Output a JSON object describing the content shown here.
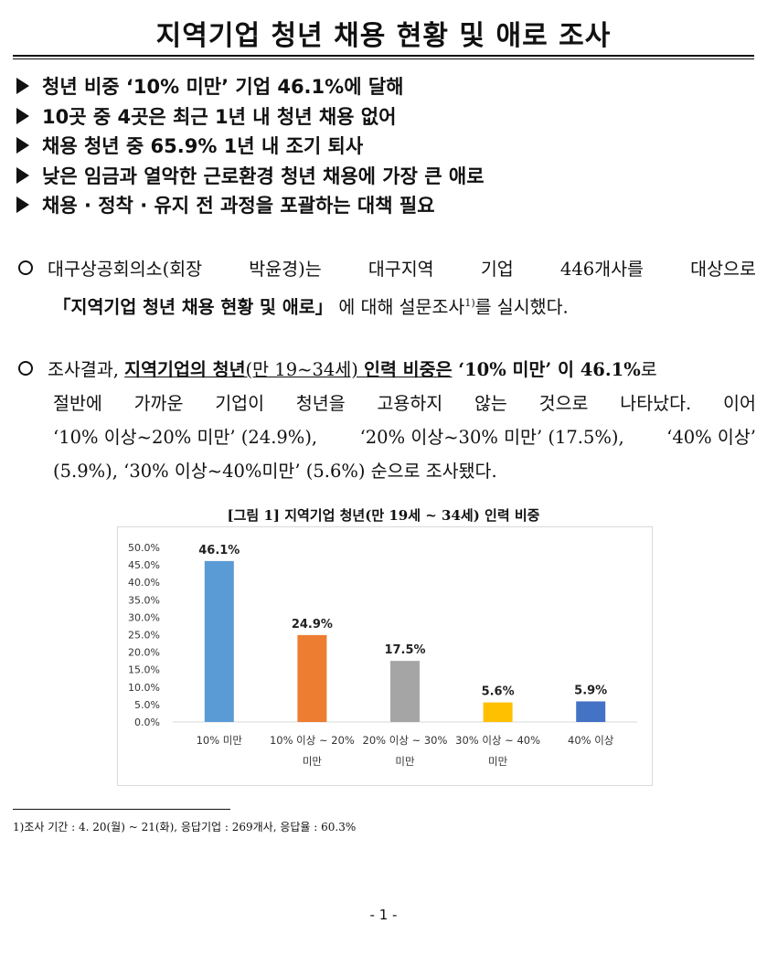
{
  "title": "지역기업 청년 채용 현황 및 애로 조사",
  "highlights": [
    "청년 비중 ‘10% 미만’ 기업 46.1%에 달해",
    "10곳 중 4곳은 최근 1년 내 청년 채용 없어",
    "채용 청년 중 65.9% 1년 내 조기 퇴사",
    "낮은 임금과 열악한 근로환경 청년 채용에 가장 큰 애로",
    "채용 · 정착 · 유지 전 과정을 포괄하는 대책 필요"
  ],
  "para1": {
    "line1_words": [
      "대구상공회의소(회장",
      "박윤경)는",
      "대구지역",
      "기업",
      "446개사를",
      "대상으로"
    ],
    "line2_bold": "「지역기업 청년 채용 현황 및 애로」",
    "line2_rest": "에 대해 설문조사",
    "footnote_ref": "1)",
    "line2_end": "를 실시했다."
  },
  "para2": {
    "p1": "조사결과, ",
    "p2_bold_underline": "지역기업의 청년",
    "p3_underline": "(만 19~34세) ",
    "p4_bold_underline": "인력 비중은",
    "p5_bold": " ‘10% 미만’ 이 46.1%",
    "p6": "로",
    "line2_words": [
      "절반에",
      "가까운",
      "기업이",
      "청년을",
      "고용하지",
      "않는",
      "것으로",
      "나타났다.",
      "이어"
    ],
    "line3_words": [
      "‘10% 이상~20% 미만’ (24.9%),",
      "‘20% 이상~30% 미만’ (17.5%),",
      "‘40% 이상’"
    ],
    "line4": "(5.9%), ‘30% 이상~40%미만’ (5.6%) 순으로 조사됐다."
  },
  "figure_caption": "[그림 1] 지역기업 청년(만 19세 ~ 34세) 인력 비중",
  "chart_data": {
    "type": "bar",
    "title": "[그림 1] 지역기업 청년(만 19세 ~ 34세) 인력 비중",
    "categories": [
      [
        "10% 미만"
      ],
      [
        "10% 이상 ~ 20%",
        "미만"
      ],
      [
        "20% 이상 ~ 30%",
        "미만"
      ],
      [
        "30% 이상 ~ 40%",
        "미만"
      ],
      [
        "40% 이상"
      ]
    ],
    "values": [
      46.1,
      24.9,
      17.5,
      5.6,
      5.9
    ],
    "data_labels": [
      "46.1%",
      "24.9%",
      "17.5%",
      "5.6%",
      "5.9%"
    ],
    "colors": [
      "#5b9bd5",
      "#ed7d31",
      "#a5a5a5",
      "#ffc000",
      "#4472c4"
    ],
    "ylim": [
      0,
      50
    ],
    "yticks": [
      "0.0%",
      "5.0%",
      "10.0%",
      "15.0%",
      "20.0%",
      "25.0%",
      "30.0%",
      "35.0%",
      "40.0%",
      "45.0%",
      "50.0%"
    ],
    "xlabel": "",
    "ylabel": "",
    "grid": false,
    "legend": "none"
  },
  "footnote": "1)조사 기간 : 4. 20(월) ~ 21(화), 응답기업 : 269개사, 응답율 : 60.3%",
  "page_number": "- 1 -"
}
